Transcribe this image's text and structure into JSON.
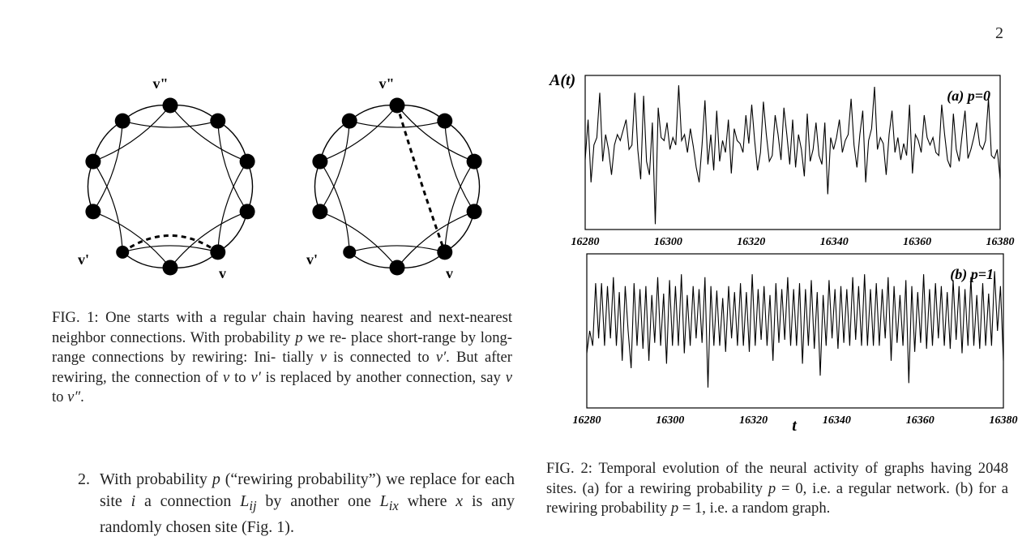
{
  "page": {
    "number": "2"
  },
  "fig1": {
    "labels": {
      "v_double_prime": "v\"",
      "v_prime": "v'",
      "v": "v"
    },
    "caption": [
      "FIG. 1: One starts with a regular chain having nearest and",
      "next-nearest neighbor connections. With probability ",
      "p",
      " we re-",
      "place short-range by long-range connections by rewiring: Ini-",
      "tially ",
      "v",
      " is connected to ",
      "v′",
      ". But after rewiring, the connection",
      "of ",
      "v",
      " to ",
      "v′",
      " is replaced by another connection, say ",
      "v",
      " to ",
      "v″",
      "."
    ]
  },
  "fig2": {
    "y_label": "A(t)",
    "x_label": "t",
    "panel_a_label": "(a) p=0",
    "panel_b_label": "(b) p=1",
    "caption_parts": [
      "FIG. 2: Temporal evolution of the neural activity of graphs having 2048 sites. (a) for a rewiring probability ",
      "p",
      " = 0, i.e. a regular network. (b) for a rewiring probability ",
      "p",
      " = 1, i.e. a random graph."
    ]
  },
  "chart_data": [
    {
      "type": "line",
      "title": "(a) p=0",
      "ylabel": "A(t)",
      "xlim": [
        16280,
        16380
      ],
      "xticks": [
        "16280",
        "16300",
        "16320",
        "16340",
        "16360",
        "16380"
      ],
      "x_start": 16280,
      "series": [
        {
          "values": [
            0.45,
            0.72,
            0.3,
            0.55,
            0.6,
            0.9,
            0.44,
            0.62,
            0.52,
            0.35,
            0.55,
            0.62,
            0.58,
            0.65,
            0.72,
            0.52,
            0.55,
            0.9,
            0.52,
            0.32,
            0.88,
            0.44,
            0.35,
            0.7,
            0.02,
            0.8,
            0.6,
            0.58,
            0.7,
            0.52,
            0.6,
            0.55,
            0.95,
            0.58,
            0.62,
            0.5,
            0.66,
            0.54,
            0.4,
            0.3,
            0.55,
            0.85,
            0.42,
            0.62,
            0.38,
            0.78,
            0.44,
            0.58,
            0.5,
            0.72,
            0.36,
            0.66,
            0.58,
            0.56,
            0.5,
            0.75,
            0.56,
            0.82,
            0.58,
            0.38,
            0.5,
            0.84,
            0.62,
            0.44,
            0.48,
            0.75,
            0.62,
            0.45,
            0.8,
            0.62,
            0.42,
            0.72,
            0.4,
            0.62,
            0.52,
            0.34,
            0.76,
            0.44,
            0.52,
            0.7,
            0.48,
            0.42,
            0.7,
            0.22,
            0.6,
            0.52,
            0.6,
            0.72,
            0.5,
            0.58,
            0.62,
            0.86,
            0.55,
            0.4,
            0.62,
            0.78,
            0.3,
            0.58,
            0.66,
            0.94,
            0.52,
            0.6,
            0.56,
            0.35,
            0.62,
            0.78,
            0.5,
            0.6,
            0.45,
            0.56,
            0.48,
            0.82,
            0.36,
            0.62,
            0.58,
            0.5,
            0.75,
            0.6,
            0.55,
            0.6,
            0.5,
            0.48,
            0.82,
            0.62,
            0.45,
            0.4,
            0.76,
            0.52,
            0.44,
            0.62,
            0.78,
            0.46,
            0.52,
            0.6,
            0.7,
            0.55,
            0.52,
            0.58,
            0.86,
            0.48,
            0.46,
            0.52,
            0.32
          ],
          "note_units": "arbitrary"
        }
      ]
    },
    {
      "type": "line",
      "title": "(b) p=1",
      "xlabel": "t",
      "xlim": [
        16280,
        16380
      ],
      "xticks": [
        "16280",
        "16300",
        "16320",
        "16340",
        "16360",
        "16380"
      ],
      "x_start": 16280,
      "series": [
        {
          "values": [
            0.35,
            0.5,
            0.4,
            0.82,
            0.45,
            0.82,
            0.4,
            0.8,
            0.45,
            0.86,
            0.4,
            0.76,
            0.3,
            0.8,
            0.5,
            0.25,
            0.82,
            0.4,
            0.78,
            0.38,
            0.8,
            0.3,
            0.74,
            0.42,
            0.86,
            0.4,
            0.75,
            0.28,
            0.84,
            0.4,
            0.8,
            0.4,
            0.88,
            0.35,
            0.74,
            0.4,
            0.8,
            0.45,
            0.78,
            0.42,
            0.86,
            0.12,
            0.8,
            0.4,
            0.77,
            0.4,
            0.72,
            0.36,
            0.8,
            0.45,
            0.76,
            0.4,
            0.82,
            0.4,
            0.76,
            0.36,
            0.88,
            0.4,
            0.78,
            0.44,
            0.8,
            0.4,
            0.74,
            0.3,
            0.82,
            0.42,
            0.78,
            0.44,
            0.86,
            0.4,
            0.78,
            0.4,
            0.82,
            0.28,
            0.78,
            0.4,
            0.84,
            0.38,
            0.76,
            0.2,
            0.74,
            0.4,
            0.84,
            0.45,
            0.78,
            0.38,
            0.8,
            0.42,
            0.78,
            0.4,
            0.86,
            0.44,
            0.8,
            0.4,
            0.88,
            0.4,
            0.78,
            0.4,
            0.82,
            0.4,
            0.78,
            0.45,
            0.86,
            0.3,
            0.8,
            0.42,
            0.74,
            0.4,
            0.84,
            0.15,
            0.8,
            0.36,
            0.76,
            0.42,
            0.88,
            0.38,
            0.78,
            0.4,
            0.82,
            0.45,
            0.8,
            0.4,
            0.76,
            0.38,
            0.84,
            0.44,
            0.8,
            0.35,
            0.78,
            0.4,
            0.86,
            0.4,
            0.74,
            0.38,
            0.82,
            0.4,
            0.75,
            0.4,
            0.9,
            0.5,
            0.8,
            0.3
          ],
          "note_units": "arbitrary"
        }
      ]
    }
  ]
}
